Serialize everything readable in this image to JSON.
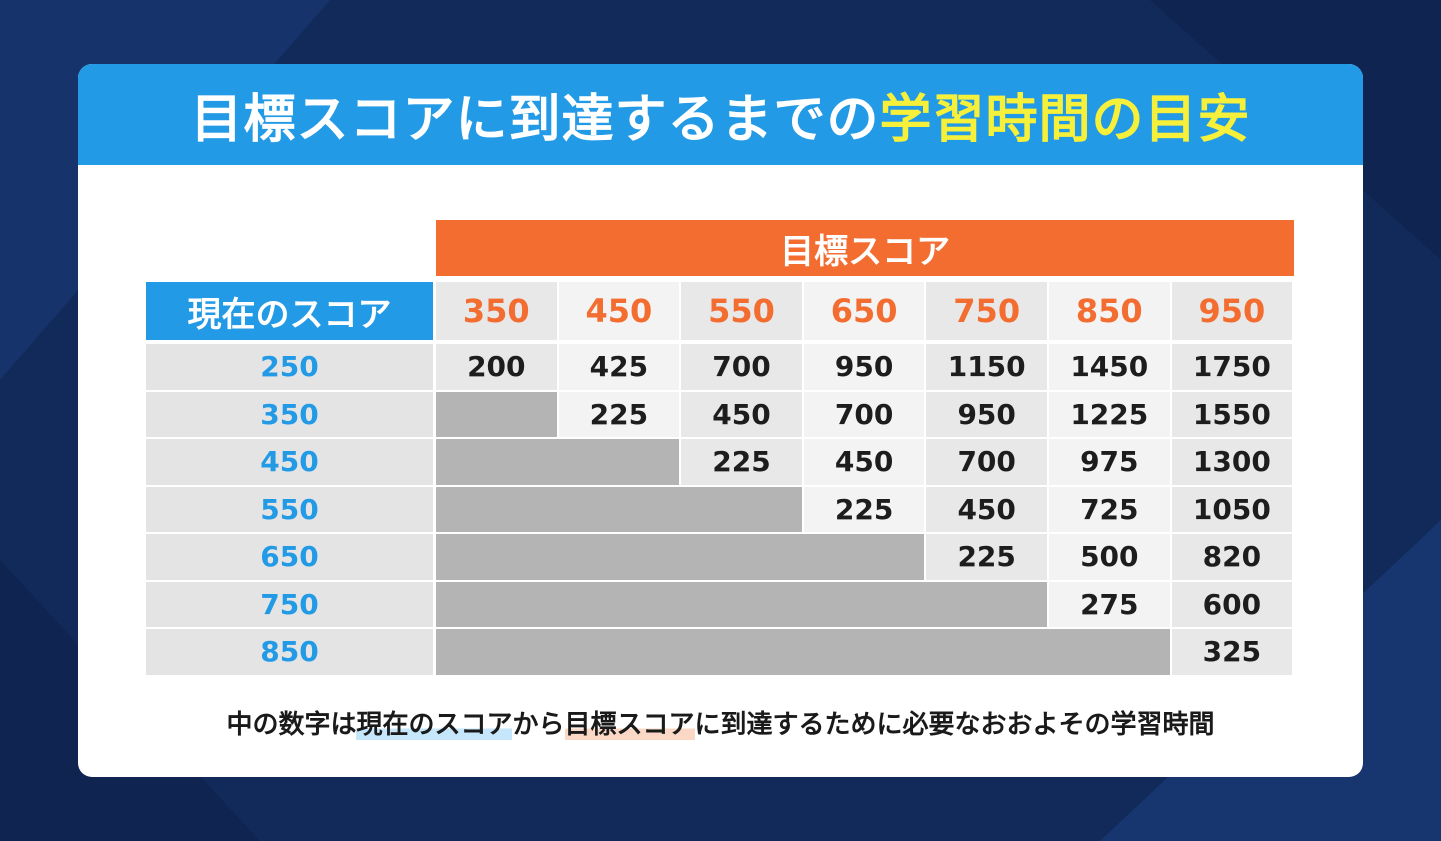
{
  "title": {
    "main": "目標スコアに到達するまでの",
    "highlight": "学習時間の目安"
  },
  "table": {
    "target_header": "目標スコア",
    "current_header": "現在のスコア",
    "target_scores": [
      "350",
      "450",
      "550",
      "650",
      "750",
      "850",
      "950"
    ],
    "current_scores": [
      "250",
      "350",
      "450",
      "550",
      "650",
      "750",
      "850"
    ],
    "rows": [
      [
        "200",
        "425",
        "700",
        "950",
        "1150",
        "1450",
        "1750"
      ],
      [
        "",
        "225",
        "450",
        "700",
        "950",
        "1225",
        "1550"
      ],
      [
        "",
        "",
        "225",
        "450",
        "700",
        "975",
        "1300"
      ],
      [
        "",
        "",
        "",
        "225",
        "450",
        "725",
        "1050"
      ],
      [
        "",
        "",
        "",
        "",
        "225",
        "500",
        "820"
      ],
      [
        "",
        "",
        "",
        "",
        "",
        "275",
        "600"
      ],
      [
        "",
        "",
        "",
        "",
        "",
        "",
        "325"
      ]
    ]
  },
  "footnote": {
    "part1": "中の数字は",
    "current_term": "現在のスコア",
    "part2": "から",
    "target_term": "目標スコア",
    "part3": "に到達するために必要なおおよその学習時間"
  },
  "colors": {
    "background": "#122a5a",
    "title_bar": "#239ae6",
    "title_highlight": "#f6f03a",
    "target_orange": "#f36c30",
    "current_blue": "#239ae6",
    "unreachable_grey": "#b4b4b4"
  }
}
